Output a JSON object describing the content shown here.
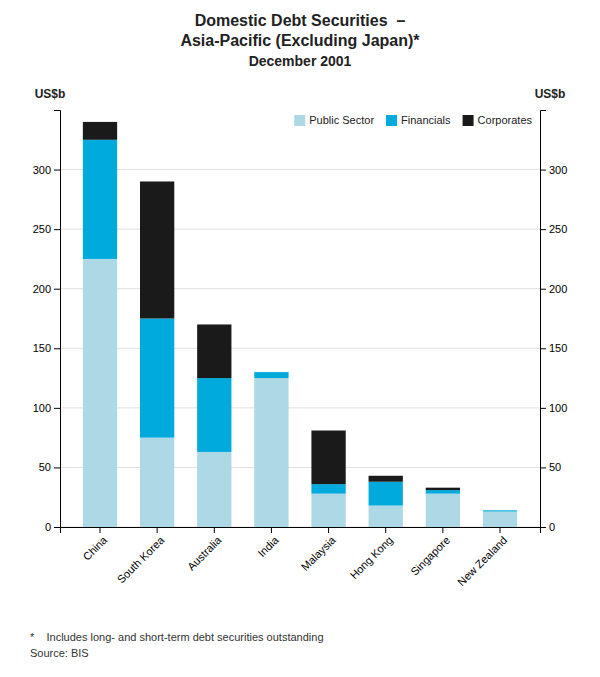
{
  "chart_data": {
    "type": "bar",
    "stacked": true,
    "title": [
      "Domestic Debt Securities  –",
      "Asia-Pacific (Excluding Japan)*",
      "December 2001"
    ],
    "categories": [
      "China",
      "South Korea",
      "Australia",
      "India",
      "Malaysia",
      "Hong Kong",
      "Singapore",
      "New Zealand"
    ],
    "series": [
      {
        "name": "Public Sector",
        "color": "#add8e6",
        "values": [
          225,
          75,
          63,
          125,
          28,
          18,
          28,
          13
        ]
      },
      {
        "name": "Financials",
        "color": "#00aadd",
        "values": [
          100,
          100,
          62,
          5,
          8,
          20,
          3,
          1
        ]
      },
      {
        "name": "Corporates",
        "color": "#1a1a1a",
        "values": [
          15,
          115,
          45,
          0,
          45,
          5,
          2,
          0
        ]
      }
    ],
    "ylabel": "US$b",
    "ylim": [
      0,
      350
    ],
    "yticks": [
      0,
      50,
      100,
      150,
      200,
      250,
      300
    ],
    "y2label": "US$b",
    "y2lim": [
      0,
      350
    ],
    "y2ticks": [
      0,
      50,
      100,
      150,
      200,
      250,
      300
    ],
    "grid": true,
    "legend": "top-right",
    "annotations": [
      "*    Includes long- and short-term debt securities outstanding",
      "Source: BIS"
    ]
  }
}
